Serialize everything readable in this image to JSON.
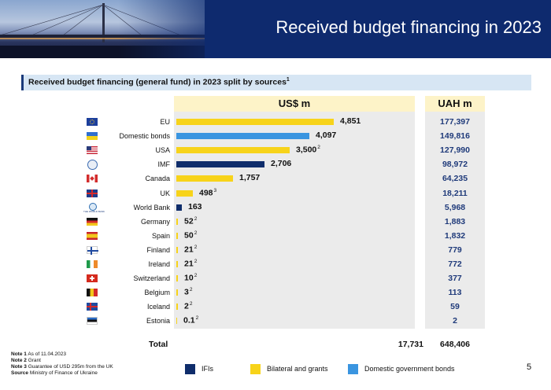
{
  "header": {
    "title": "Received budget financing in 2023"
  },
  "subtitle": {
    "text": "Received budget financing (general fund) in 2023 split by sources",
    "sup": "1"
  },
  "columns": {
    "usd": "US$ m",
    "uah": "UAH m"
  },
  "chart_data": {
    "type": "bar",
    "orientation": "horizontal",
    "title": "Received budget financing (general fund) in 2023 split by sources",
    "categories": [
      "EU",
      "Domestic bonds",
      "USA",
      "IMF",
      "Canada",
      "UK",
      "World Bank",
      "Germany",
      "Spain",
      "Finland",
      "Ireland",
      "Switzerland",
      "Belgium",
      "Iceland",
      "Estonia"
    ],
    "series": [
      {
        "name": "US$ m",
        "values": [
          4851,
          4097,
          3500,
          2706,
          1757,
          498,
          163,
          52,
          50,
          21,
          21,
          10,
          3,
          2,
          0.1
        ]
      }
    ],
    "value_labels": [
      "4,851",
      "4,097",
      "3,500",
      "2,706",
      "1,757",
      "498",
      "163",
      "52",
      "50",
      "21",
      "21",
      "10",
      "3",
      "2",
      "0.1"
    ],
    "value_notes": [
      "",
      "",
      "2",
      "",
      "",
      "3",
      "",
      "2",
      "2",
      "2",
      "2",
      "2",
      "2",
      "2",
      "2"
    ],
    "categories_type": [
      "Bilateral and grants",
      "Domestic government bonds",
      "Bilateral and grants",
      "IFIs",
      "Bilateral and grants",
      "Bilateral and grants",
      "IFIs",
      "Bilateral and grants",
      "Bilateral and grants",
      "Bilateral and grants",
      "Bilateral and grants",
      "Bilateral and grants",
      "Bilateral and grants",
      "Bilateral and grants",
      "Bilateral and grants"
    ],
    "uah_values": [
      "177,397",
      "149,816",
      "127,990",
      "98,972",
      "64,235",
      "18,211",
      "5,968",
      "1,883",
      "1,832",
      "779",
      "772",
      "377",
      "113",
      "59",
      "2"
    ],
    "legend": [
      {
        "name": "IFIs",
        "color": "#0f2d6b"
      },
      {
        "name": "Bilateral and grants",
        "color": "#f7d31a"
      },
      {
        "name": "Domestic government bonds",
        "color": "#3a95e0"
      }
    ],
    "legend_position": "bottom"
  },
  "total": {
    "label": "Total",
    "usd": "17,731",
    "uah": "648,406"
  },
  "notes": [
    {
      "key": "Note 1",
      "text": "As of 11.04.2023"
    },
    {
      "key": "Note 2",
      "text": "Grant"
    },
    {
      "key": "Note 3",
      "text": "Guarantee of USD 295m from the UK"
    },
    {
      "key": "Source",
      "text": "Ministry of Finance of Ukraine"
    }
  ],
  "flags": [
    "eu",
    "ua",
    "us",
    "imf",
    "ca",
    "uk",
    "wb",
    "de",
    "es",
    "fi",
    "ie",
    "ch",
    "be",
    "is",
    "ee"
  ],
  "page_number": "5"
}
